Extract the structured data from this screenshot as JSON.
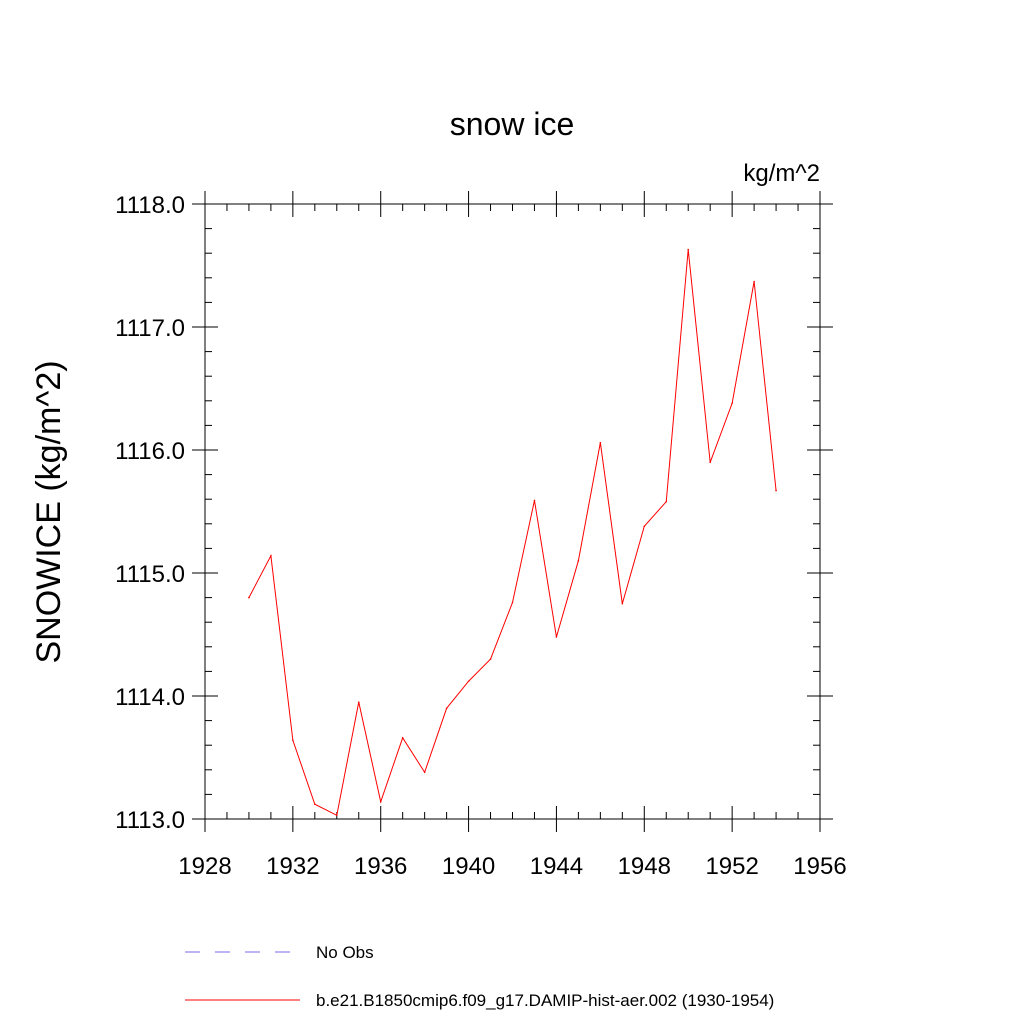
{
  "chart_data": {
    "type": "line",
    "title": "snow ice",
    "units_label": "kg/m^2",
    "ylabel": "SNOWICE  (kg/m^2)",
    "xlabel": "",
    "xlim": [
      1928,
      1956
    ],
    "ylim": [
      1113.0,
      1118.0
    ],
    "x_ticks": [
      "1928",
      "1932",
      "1936",
      "1940",
      "1944",
      "1948",
      "1952",
      "1956"
    ],
    "y_ticks": [
      "1113.0",
      "1114.0",
      "1115.0",
      "1116.0",
      "1117.0",
      "1118.0"
    ],
    "grid": false,
    "legend_position": "bottom",
    "series": [
      {
        "name": "b.e21.B1850cmip6.f09_g17.DAMIP-hist-aer.002 (1930-1954)",
        "color": "#ff0000",
        "style": "solid",
        "x": [
          1930,
          1931,
          1932,
          1933,
          1934,
          1935,
          1936,
          1937,
          1938,
          1939,
          1940,
          1941,
          1942,
          1943,
          1944,
          1945,
          1946,
          1947,
          1948,
          1949,
          1950,
          1951,
          1952,
          1953,
          1954
        ],
        "y": [
          1114.8,
          1115.14,
          1113.64,
          1113.12,
          1113.03,
          1113.95,
          1113.14,
          1113.66,
          1113.38,
          1113.9,
          1114.12,
          1114.3,
          1114.76,
          1115.59,
          1114.48,
          1115.1,
          1116.06,
          1114.75,
          1115.38,
          1115.58,
          1117.63,
          1115.9,
          1116.38,
          1117.37,
          1115.67
        ]
      }
    ],
    "legend": [
      {
        "label": "No Obs",
        "color": "#7b68ee",
        "style": "dashed"
      },
      {
        "label": "b.e21.B1850cmip6.f09_g17.DAMIP-hist-aer.002 (1930-1954)",
        "color": "#ff0000",
        "style": "solid"
      }
    ]
  }
}
